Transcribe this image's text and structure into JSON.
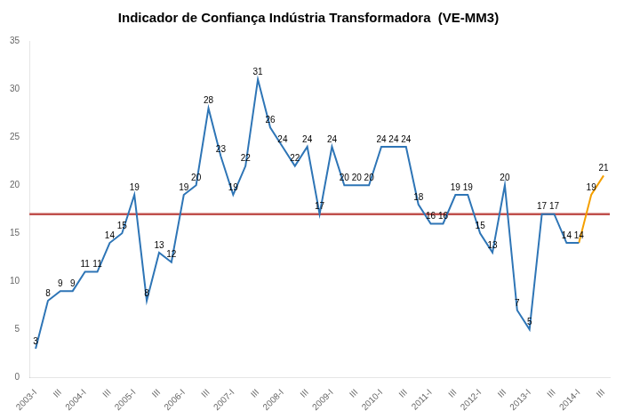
{
  "chart_data": {
    "type": "line",
    "title": "Indicador de Confiança Indústria Transformadora  (VE-MM3)",
    "categories": [
      "2003-I",
      null,
      "III",
      null,
      "2004-I",
      null,
      "III",
      null,
      "2005-I",
      null,
      "III",
      null,
      "2006-I",
      null,
      "III",
      null,
      "2007-I",
      null,
      "III",
      null,
      "2008-I",
      null,
      "III",
      null,
      "2009-I",
      null,
      "III",
      null,
      "2010-I",
      null,
      "III",
      null,
      "2011-I",
      null,
      "III",
      null,
      "2012-I",
      null,
      "III",
      null,
      "2013-I",
      null,
      "III",
      null,
      "2014-I",
      null,
      "III"
    ],
    "series": [
      {
        "color": "#2e75b6",
        "values": [
          3,
          8,
          9,
          9,
          11,
          11,
          14,
          15,
          19,
          8,
          13,
          12,
          19,
          20,
          28,
          23,
          19,
          22,
          31,
          26,
          24,
          22,
          24,
          17,
          24,
          20,
          20,
          20,
          24,
          24,
          24,
          18,
          16,
          16,
          19,
          19,
          15,
          13,
          20,
          7,
          5,
          17,
          17,
          14,
          14,
          null,
          null
        ]
      },
      {
        "color": "#f5a000",
        "values": [
          null,
          null,
          null,
          null,
          null,
          null,
          null,
          null,
          null,
          null,
          null,
          null,
          null,
          null,
          null,
          null,
          null,
          null,
          null,
          null,
          null,
          null,
          null,
          null,
          null,
          null,
          null,
          null,
          null,
          null,
          null,
          null,
          null,
          null,
          null,
          null,
          null,
          null,
          null,
          null,
          null,
          null,
          null,
          null,
          14,
          19,
          21
        ]
      }
    ],
    "reference_line": {
      "value": 17,
      "color": "#c0504d"
    },
    "ylim": [
      0,
      35
    ],
    "yticks": [
      0,
      5,
      10,
      15,
      20,
      25,
      30,
      35
    ],
    "grid": false,
    "data_labels": true
  }
}
